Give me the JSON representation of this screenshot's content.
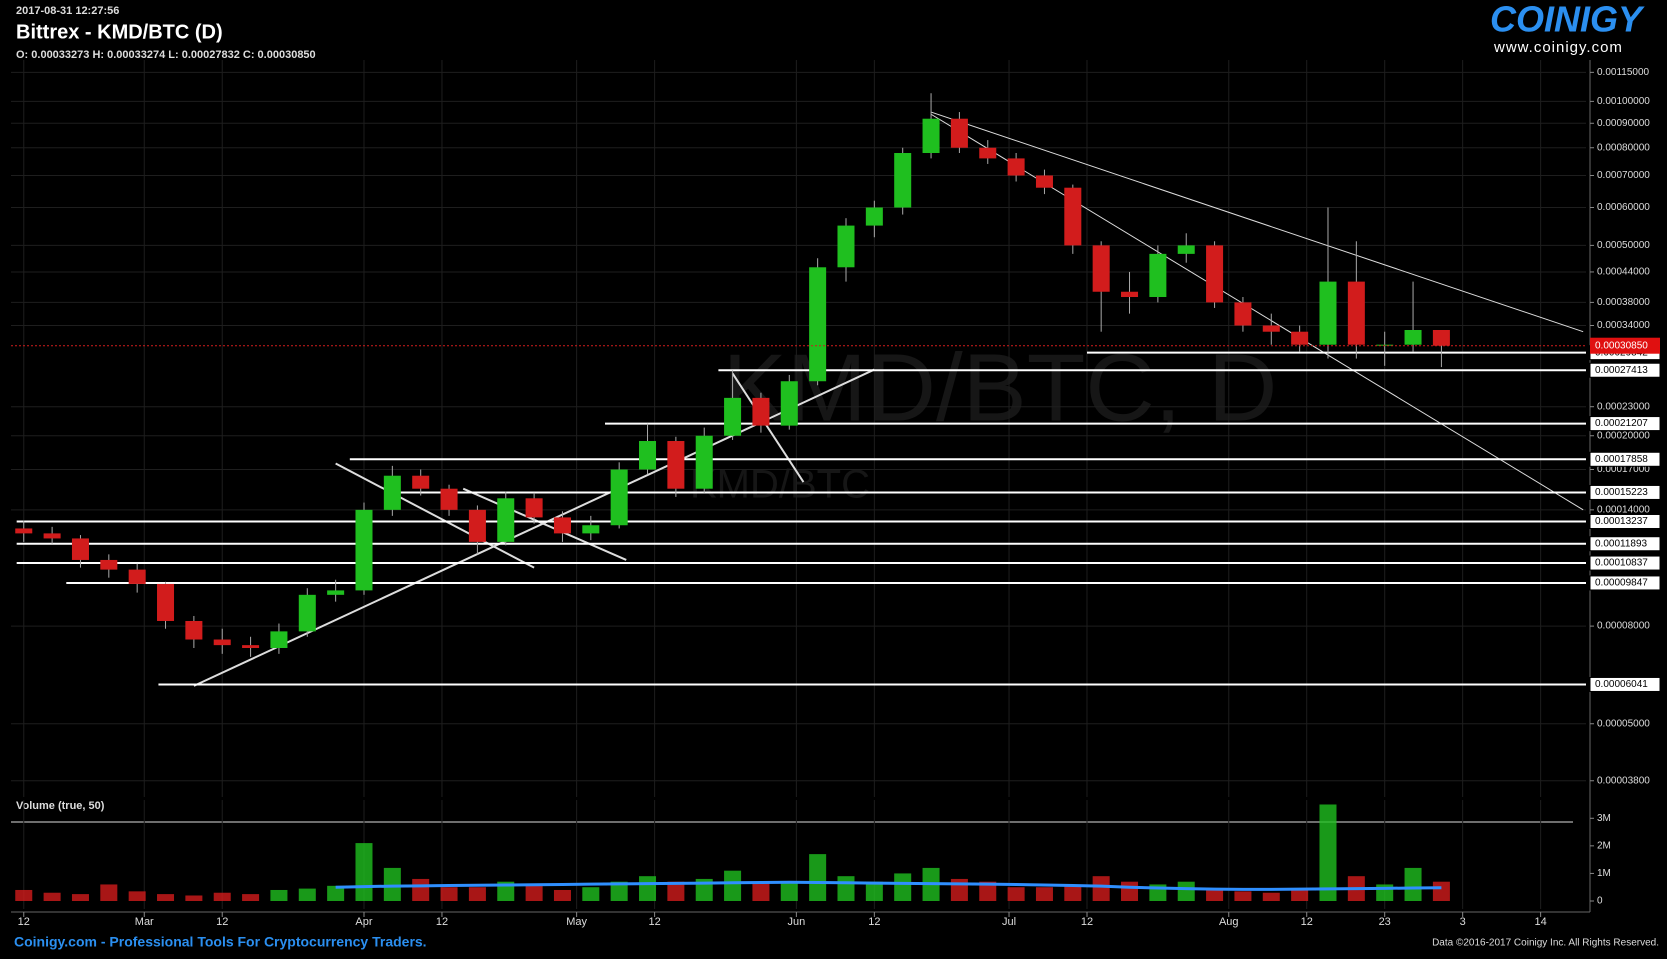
{
  "header": {
    "timestamp": "2017-08-31 12:27:56",
    "ohlc_line": "O: 0.00033273 H: 0.00033274 L: 0.00027832 C: 0.00030850",
    "logo": "COINIGY",
    "logo_url": "www.coinigy.com"
  },
  "footer": {
    "left": "Coinigy.com - Professional Tools For Cryptocurrency Traders.",
    "right": "Data ©2016-2017 Coinigy Inc. All Rights Reserved."
  },
  "chart_data": {
    "type": "candlestick",
    "title": "Bittrex - KMD/BTC (D)",
    "watermark": "KMD/BTC, D",
    "watermark_small": "KMD/BTC",
    "bull_color": "#1fbf1f",
    "bear_color": "#d21c1c",
    "log_scale": true,
    "grid": true,
    "x": [
      0,
      4,
      8,
      12,
      16,
      20,
      24,
      28,
      32,
      36,
      40,
      44,
      48,
      52,
      56,
      60,
      64,
      68,
      72,
      76,
      80,
      84,
      88,
      92,
      96,
      100,
      104,
      108,
      112,
      116,
      120,
      124,
      128,
      132,
      136,
      140,
      144,
      148,
      152,
      156,
      160,
      164,
      168,
      172,
      176,
      180,
      184,
      188,
      192,
      196,
      200
    ],
    "candles": [
      [
        0.000128,
        0.000133,
        0.00012,
        0.000125
      ],
      [
        0.000125,
        0.000129,
        0.000119,
        0.000122
      ],
      [
        0.000122,
        0.000124,
        0.000106,
        0.00011
      ],
      [
        0.00011,
        0.000113,
        0.000101,
        0.000105
      ],
      [
        0.000105,
        0.000108,
        9.4e-05,
        9.8e-05
      ],
      [
        9.8e-05,
        9.9e-05,
        7.9e-05,
        8.2e-05
      ],
      [
        8.2e-05,
        8.4e-05,
        7.2e-05,
        7.5e-05
      ],
      [
        7.5e-05,
        7.9e-05,
        7e-05,
        7.3e-05
      ],
      [
        7.3e-05,
        7.6e-05,
        6.9e-05,
        7.2e-05
      ],
      [
        7.2e-05,
        8.1e-05,
        7e-05,
        7.8e-05
      ],
      [
        7.8e-05,
        9.6e-05,
        7.6e-05,
        9.3e-05
      ],
      [
        9.3e-05,
        0.0001,
        9e-05,
        9.5e-05
      ],
      [
        9.5e-05,
        0.000145,
        9.3e-05,
        0.00014
      ],
      [
        0.00014,
        0.000173,
        0.000136,
        0.000165
      ],
      [
        0.000165,
        0.00017,
        0.00015,
        0.000155
      ],
      [
        0.000155,
        0.000158,
        0.000136,
        0.00014
      ],
      [
        0.00014,
        0.000143,
        0.000113,
        0.00012
      ],
      [
        0.00012,
        0.000153,
        0.000118,
        0.000148
      ],
      [
        0.000148,
        0.000152,
        0.000131,
        0.000135
      ],
      [
        0.000135,
        0.000139,
        0.00012,
        0.000125
      ],
      [
        0.000125,
        0.000136,
        0.000121,
        0.00013
      ],
      [
        0.00013,
        0.000176,
        0.000128,
        0.00017
      ],
      [
        0.00017,
        0.000212,
        0.000166,
        0.000195
      ],
      [
        0.000195,
        0.000199,
        0.000149,
        0.000155
      ],
      [
        0.000155,
        0.000208,
        0.000152,
        0.0002
      ],
      [
        0.0002,
        0.000274,
        0.000196,
        0.00024
      ],
      [
        0.00024,
        0.000246,
        0.000203,
        0.00021
      ],
      [
        0.00021,
        0.000268,
        0.000206,
        0.00026
      ],
      [
        0.00026,
        0.00047,
        0.000255,
        0.00045
      ],
      [
        0.00045,
        0.00057,
        0.00042,
        0.00055
      ],
      [
        0.00055,
        0.00062,
        0.00052,
        0.0006
      ],
      [
        0.0006,
        0.0008,
        0.00058,
        0.00078
      ],
      [
        0.00078,
        0.00104,
        0.00076,
        0.00092
      ],
      [
        0.00092,
        0.00095,
        0.00078,
        0.0008
      ],
      [
        0.0008,
        0.00083,
        0.00074,
        0.00076
      ],
      [
        0.00076,
        0.00078,
        0.00068,
        0.0007
      ],
      [
        0.0007,
        0.00072,
        0.00064,
        0.00066
      ],
      [
        0.00066,
        0.00067,
        0.00048,
        0.0005
      ],
      [
        0.0005,
        0.00051,
        0.00033,
        0.0004
      ],
      [
        0.0004,
        0.00044,
        0.00036,
        0.00039
      ],
      [
        0.00039,
        0.0005,
        0.00038,
        0.00048
      ],
      [
        0.00048,
        0.00053,
        0.00046,
        0.0005
      ],
      [
        0.0005,
        0.00051,
        0.00037,
        0.00038
      ],
      [
        0.00038,
        0.00039,
        0.00033,
        0.00034
      ],
      [
        0.00034,
        0.00036,
        0.00031,
        0.00033
      ],
      [
        0.00033,
        0.00034,
        0.0003,
        0.00031
      ],
      [
        0.00031,
        0.0006,
        0.00029,
        0.00042
      ],
      [
        0.00042,
        0.00051,
        0.00029,
        0.00031
      ],
      [
        0.00031,
        0.00033,
        0.00028,
        0.00031
      ],
      [
        0.00031,
        0.00042,
        0.0003,
        0.00033273
      ],
      [
        0.00033273,
        0.00033274,
        0.00027832,
        0.0003085
      ]
    ],
    "xlim": [
      -1.8,
      220.4
    ],
    "xticks": [
      {
        "value": 0,
        "label": "12"
      },
      {
        "value": 17,
        "label": "Mar"
      },
      {
        "value": 28,
        "label": "12"
      },
      {
        "value": 48,
        "label": "Apr"
      },
      {
        "value": 59,
        "label": "12"
      },
      {
        "value": 78,
        "label": "May"
      },
      {
        "value": 89,
        "label": "12"
      },
      {
        "value": 109,
        "label": "Jun"
      },
      {
        "value": 120,
        "label": "12"
      },
      {
        "value": 139,
        "label": "Jul"
      },
      {
        "value": 150,
        "label": "12"
      },
      {
        "value": 170,
        "label": "Aug"
      },
      {
        "value": 181,
        "label": "12"
      },
      {
        "value": 192,
        "label": "23"
      },
      {
        "value": 203,
        "label": "3"
      },
      {
        "value": 214,
        "label": "14"
      }
    ],
    "ylim": [
      3.6e-05,
      0.00118
    ],
    "yticks": [
      {
        "value": 0.00115,
        "label": "0.00115000"
      },
      {
        "value": 0.001,
        "label": "0.00100000"
      },
      {
        "value": 0.0009,
        "label": "0.00090000"
      },
      {
        "value": 0.0008,
        "label": "0.00080000"
      },
      {
        "value": 0.0007,
        "label": "0.00070000"
      },
      {
        "value": 0.0006,
        "label": "0.00060000"
      },
      {
        "value": 0.0005,
        "label": "0.00050000"
      },
      {
        "value": 0.00044,
        "label": "0.00044000"
      },
      {
        "value": 0.00038,
        "label": "0.00038000"
      },
      {
        "value": 0.00034,
        "label": "0.00034000"
      },
      {
        "value": 0.00023,
        "label": "0.00023000"
      },
      {
        "value": 0.0002,
        "label": "0.00020000"
      },
      {
        "value": 0.00017,
        "label": "0.00017000"
      },
      {
        "value": 0.00014,
        "label": "0.00014000"
      },
      {
        "value": 8e-05,
        "label": "0.00008000"
      },
      {
        "value": 5e-05,
        "label": "0.00005000"
      },
      {
        "value": 3.8e-05,
        "label": "0.00003800"
      }
    ],
    "last_price": {
      "value": 0.0003085,
      "label": "0.00030850"
    },
    "levels": [
      {
        "value": 0.00029842,
        "start": 150
      },
      {
        "value": 0.00027413,
        "start": 98
      },
      {
        "value": 0.00021207,
        "start": 82
      },
      {
        "value": 0.00017858,
        "start": 46
      },
      {
        "value": 0.00015223,
        "start": 51
      },
      {
        "value": 0.00013237,
        "start": -1
      },
      {
        "value": 0.00011893,
        "start": -1
      },
      {
        "value": 0.00010837,
        "start": -1
      },
      {
        "value": 9.847e-05,
        "start": 6
      },
      {
        "value": 6.041e-05,
        "start": 19
      }
    ],
    "trendlines": [
      [
        128,
        0.00095,
        220,
        0.00033
      ],
      [
        128,
        0.00094,
        220,
        0.00014
      ],
      [
        24,
        6e-05,
        120,
        0.000275
      ],
      [
        44,
        0.000175,
        72,
        0.000106
      ],
      [
        62,
        0.000155,
        85,
        0.00011
      ],
      [
        100,
        0.00027,
        110,
        0.00016
      ]
    ],
    "volume_title": "Volume (true, 50)",
    "volume": [
      400000,
      300000,
      250000,
      600000,
      350000,
      250000,
      200000,
      300000,
      250000,
      400000,
      450000,
      550000,
      2100000,
      1200000,
      800000,
      500000,
      500000,
      700000,
      600000,
      400000,
      500000,
      700000,
      900000,
      700000,
      800000,
      1100000,
      700000,
      700000,
      1700000,
      900000,
      700000,
      1000000,
      1200000,
      800000,
      700000,
      500000,
      500000,
      600000,
      900000,
      700000,
      600000,
      700000,
      400000,
      350000,
      300000,
      400000,
      3500000,
      900000,
      600000,
      1200000,
      700000
    ],
    "volume_ma": [
      null,
      null,
      null,
      null,
      null,
      null,
      null,
      null,
      null,
      null,
      null,
      500000,
      520000,
      540000,
      550000,
      560000,
      570000,
      580000,
      590000,
      600000,
      610000,
      620000,
      630000,
      640000,
      650000,
      660000,
      670000,
      680000,
      670000,
      660000,
      650000,
      640000,
      630000,
      620000,
      610000,
      600000,
      580000,
      560000,
      540000,
      500000,
      470000,
      450000,
      430000,
      420000,
      420000,
      430000,
      440000,
      450000,
      460000,
      470000,
      480000
    ],
    "volume_ma_color": "#2f8fff",
    "vlim": [
      0,
      3300000
    ],
    "vticks": [
      0,
      {
        "value": 1000000,
        "label": "1M"
      },
      {
        "value": 2000000,
        "label": "2M"
      },
      {
        "value": 3000000,
        "label": "3M"
      }
    ]
  }
}
